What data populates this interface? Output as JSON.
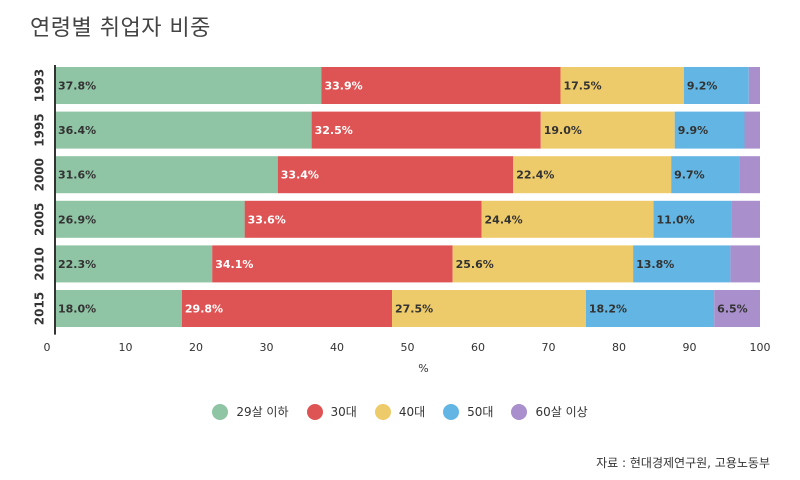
{
  "title": "연령별 취업자 비중",
  "source": "자료 : 현대경제연구원, 고용노동부",
  "chart_data": {
    "type": "bar",
    "orientation": "horizontal",
    "stacked": true,
    "categories": [
      "1993",
      "1995",
      "2000",
      "2005",
      "2010",
      "2015"
    ],
    "series": [
      {
        "name": "29살 이하",
        "color": "#8fc4a4",
        "values": [
          37.8,
          36.4,
          31.6,
          26.9,
          22.3,
          18.0
        ]
      },
      {
        "name": "30대",
        "color": "#de5455",
        "values": [
          33.9,
          32.5,
          33.4,
          33.6,
          34.1,
          29.8
        ]
      },
      {
        "name": "40대",
        "color": "#eecb6a",
        "values": [
          17.5,
          19.0,
          22.4,
          24.4,
          25.6,
          27.5
        ]
      },
      {
        "name": "50대",
        "color": "#63b6e3",
        "values": [
          9.2,
          9.9,
          9.7,
          11.0,
          13.8,
          18.2
        ]
      },
      {
        "name": "60살 이상",
        "color": "#a98fcc",
        "values": [
          1.6,
          2.2,
          2.9,
          4.1,
          4.2,
          6.5
        ]
      }
    ],
    "data_labels": [
      [
        "37.8%",
        "36.4%",
        "31.6%",
        "26.9%",
        "22.3%",
        "18.0%"
      ],
      [
        "33.9%",
        "32.5%",
        "33.4%",
        "33.6%",
        "34.1%",
        "29.8%"
      ],
      [
        "17.5%",
        "19.0%",
        "22.4%",
        "24.4%",
        "25.6%",
        "27.5%"
      ],
      [
        "9.2%",
        "9.9%",
        "9.7%",
        "11.0%",
        "13.8%",
        "18.2%"
      ],
      [
        "",
        "",
        "",
        "",
        "",
        "6.5%"
      ]
    ],
    "xlabel": "%",
    "ylabel": "",
    "xlim": [
      0,
      100
    ],
    "xticks": [
      "0",
      "10",
      "20",
      "30",
      "40",
      "50",
      "60",
      "70",
      "80",
      "90",
      "100"
    ],
    "grid": false,
    "legend_position": "bottom"
  }
}
